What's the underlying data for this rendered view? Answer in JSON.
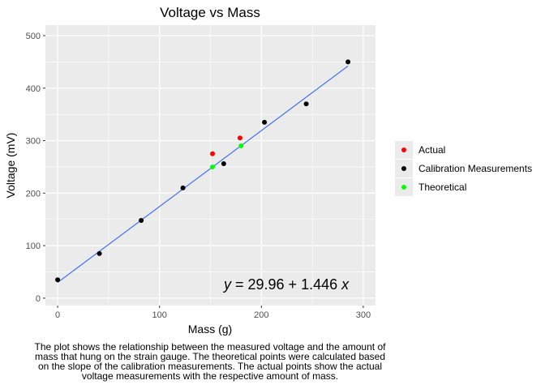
{
  "chart_data": {
    "type": "scatter",
    "title": "Voltage vs Mass",
    "xlabel": "Mass (g)",
    "ylabel": "Voltage (mV)",
    "xlim": [
      -12,
      312
    ],
    "ylim": [
      -14,
      520
    ],
    "xticks": [
      0,
      100,
      200,
      300
    ],
    "yticks": [
      0,
      100,
      200,
      300,
      400,
      500
    ],
    "grid": true,
    "legend_position": "right",
    "series": [
      {
        "name": "Actual",
        "color": "#ff0000",
        "points": [
          {
            "x": 152,
            "y": 275
          },
          {
            "x": 179,
            "y": 305
          }
        ]
      },
      {
        "name": "Calibration Measurements",
        "color": "#000000",
        "points": [
          {
            "x": 0,
            "y": 35
          },
          {
            "x": 41,
            "y": 85
          },
          {
            "x": 82,
            "y": 148
          },
          {
            "x": 123,
            "y": 210
          },
          {
            "x": 163,
            "y": 256
          },
          {
            "x": 203,
            "y": 335
          },
          {
            "x": 244,
            "y": 370
          },
          {
            "x": 285,
            "y": 450
          }
        ]
      },
      {
        "name": "Theoretical",
        "color": "#00ff00",
        "points": [
          {
            "x": 152,
            "y": 250
          },
          {
            "x": 180,
            "y": 290
          }
        ]
      }
    ],
    "fit_line": {
      "color": "#3366ff",
      "intercept": 29.96,
      "slope": 1.446,
      "x_range": [
        0,
        285
      ]
    },
    "annotation": {
      "y_sym": "y",
      "rest": " = 29.96 + 1.446 ",
      "x_sym": "x"
    }
  },
  "caption": "The plot shows the relationship between the measured voltage and the amount of mass that hung on the strain gauge. The theoretical points were calculated based on the slope of the calibration measurements. The actual points show the actual voltage measurements with the respective amount of mass.",
  "caption_lines": [
    "The plot shows the relationship between the measured voltage and the amount of",
    "mass that hung on the strain gauge. The theoretical points were calculated based",
    "on the slope of the calibration measurements. The actual points show the actual",
    "voltage measurements with the respective amount of mass."
  ]
}
